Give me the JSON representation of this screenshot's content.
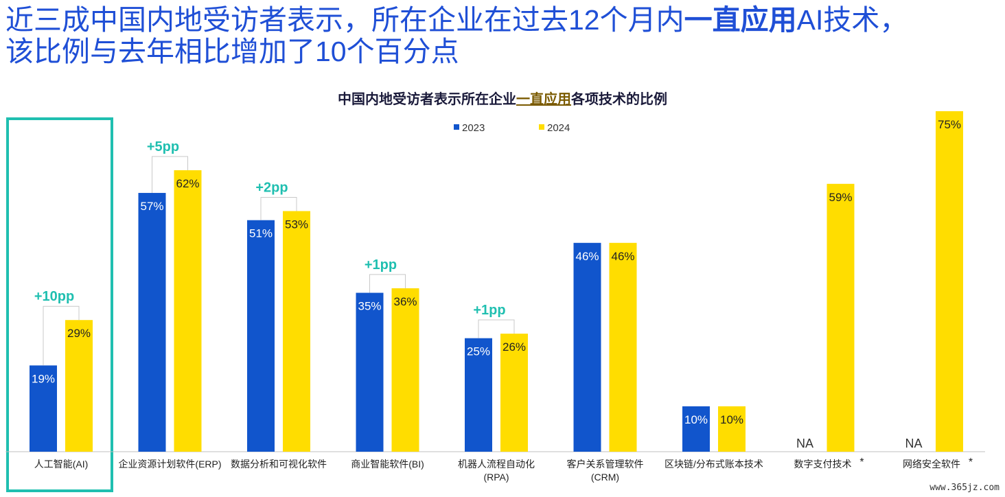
{
  "headline": {
    "line1_pre": "近三成中国内地受访者表示，所在企业在过去12个月内",
    "line1_bold": "一直应用",
    "line1_post": "AI技术，",
    "line2": "该比例与去年相比增加了10个百分点"
  },
  "chart_data": {
    "type": "bar",
    "title_pre": "中国内地受访者表示所在企业",
    "title_highlight": "一直应用",
    "title_post": "各项技术的比例",
    "categories": [
      [
        "人工智能(AI)"
      ],
      [
        "企业资源计划软件(ERP)"
      ],
      [
        "数据分析和可视化软件"
      ],
      [
        "商业智能软件(BI)"
      ],
      [
        "机器人流程自动化",
        "(RPA)"
      ],
      [
        "客户关系管理软件",
        "(CRM)"
      ],
      [
        "区块链/分布式账本技术"
      ],
      [
        "数字支付技术"
      ],
      [
        "网络安全软件"
      ]
    ],
    "category_marks": [
      "",
      "",
      "",
      "",
      "",
      "",
      "",
      "*",
      "*"
    ],
    "series": [
      {
        "name": "2023",
        "color": "#1155cc",
        "values": [
          19,
          57,
          51,
          35,
          25,
          46,
          10,
          null,
          null
        ],
        "labels": [
          "19%",
          "57%",
          "51%",
          "35%",
          "25%",
          "46%",
          "10%",
          "NA",
          "NA"
        ]
      },
      {
        "name": "2024",
        "color": "#ffdd00",
        "values": [
          29,
          62,
          53,
          36,
          26,
          46,
          10,
          59,
          75
        ],
        "labels": [
          "29%",
          "62%",
          "53%",
          "36%",
          "26%",
          "46%",
          "10%",
          "59%",
          "75%"
        ]
      }
    ],
    "changes": [
      "+10pp",
      "+5pp",
      "+2pp",
      "+1pp",
      "+1pp",
      "",
      "",
      "",
      ""
    ],
    "change_color": "#1fbfb0",
    "highlight_box_color": "#1fbfb0",
    "ylim": [
      0,
      75
    ],
    "legend_position": "top-center"
  },
  "watermark": "www.365jz.com"
}
